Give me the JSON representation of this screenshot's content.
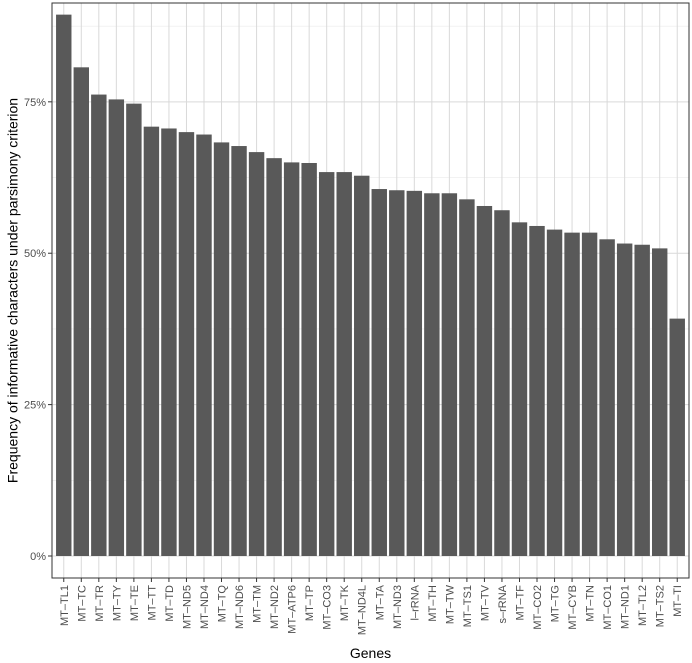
{
  "chart_data": {
    "type": "bar",
    "title": "",
    "xlabel": "Genes",
    "ylabel": "Frequency of informative characters under parsimony criterion",
    "ylim": [
      0,
      0.9
    ],
    "yticks": [
      0,
      0.25,
      0.5,
      0.75
    ],
    "ytick_labels": [
      "0%",
      "25%",
      "50%",
      "75%"
    ],
    "grid": true,
    "legend": "none",
    "categories": [
      "MT–TL1",
      "MT–TC",
      "MT–TR",
      "MT–TY",
      "MT–TE",
      "MT–TT",
      "MT–TD",
      "MT–ND5",
      "MT–ND4",
      "MT–TQ",
      "MT–ND6",
      "MT–TM",
      "MT–ND2",
      "MT–ATP6",
      "MT–TP",
      "MT–CO3",
      "MT–TK",
      "MT–ND4L",
      "MT–TA",
      "MT–ND3",
      "l–rRNA",
      "MT–TH",
      "MT–TW",
      "MT–TS1",
      "MT–TV",
      "s–rRNA",
      "MT–TF",
      "MT–CO2",
      "MT–TG",
      "MT–CYB",
      "MT–TN",
      "MT–CO1",
      "MT–ND1",
      "MT–TL2",
      "MT–TS2",
      "MT–TI"
    ],
    "values": [
      0.894,
      0.807,
      0.762,
      0.754,
      0.747,
      0.709,
      0.706,
      0.7,
      0.696,
      0.683,
      0.677,
      0.667,
      0.657,
      0.65,
      0.649,
      0.634,
      0.634,
      0.628,
      0.606,
      0.604,
      0.603,
      0.599,
      0.599,
      0.589,
      0.578,
      0.571,
      0.551,
      0.545,
      0.539,
      0.534,
      0.534,
      0.523,
      0.516,
      0.514,
      0.508,
      0.392
    ]
  },
  "colors": {
    "bar": "#595959",
    "panel_border": "#333333",
    "grid_major": "#d9d9d9",
    "grid_minor": "#ebebeb",
    "tick_text": "#4d4d4d",
    "title_text": "#000000"
  }
}
